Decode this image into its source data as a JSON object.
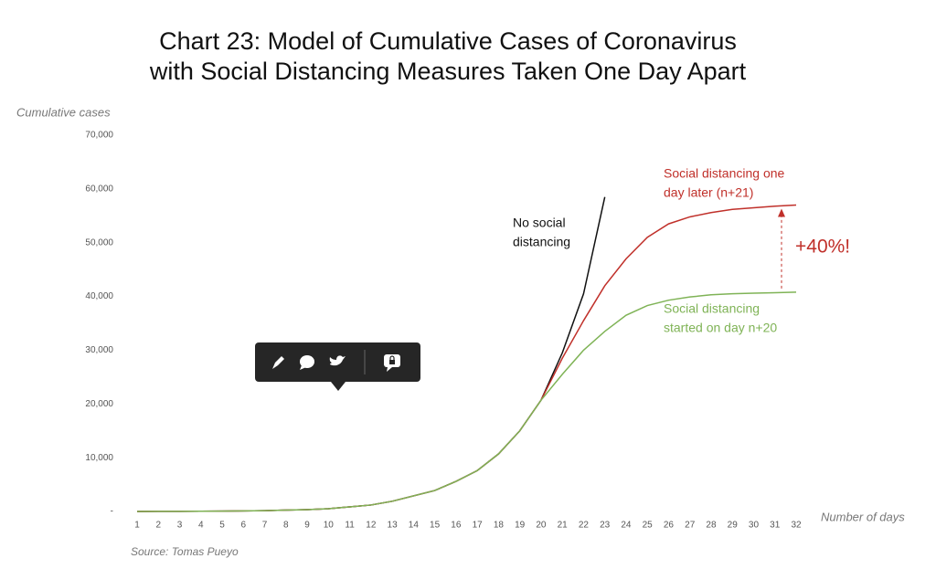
{
  "chart_data": {
    "type": "line",
    "title_lines": [
      "Chart 23: Model of Cumulative Cases of Coronavirus",
      "with Social Distancing Measures Taken One Day Apart"
    ],
    "y_label": "Cumulative cases",
    "x_label": "Number of days",
    "source": "Source: Tomas Pueyo",
    "categories": [
      "1",
      "2",
      "3",
      "4",
      "5",
      "6",
      "7",
      "8",
      "9",
      "10",
      "11",
      "12",
      "13",
      "14",
      "15",
      "16",
      "17",
      "18",
      "19",
      "20",
      "21",
      "22",
      "23",
      "24",
      "25",
      "26",
      "27",
      "28",
      "29",
      "30",
      "31",
      "32"
    ],
    "ylim": [
      0,
      70000
    ],
    "yticks": [
      {
        "value": 0,
        "label": "-"
      },
      {
        "value": 10000,
        "label": "10,000"
      },
      {
        "value": 20000,
        "label": "20,000"
      },
      {
        "value": 30000,
        "label": "30,000"
      },
      {
        "value": 40000,
        "label": "40,000"
      },
      {
        "value": 50000,
        "label": "50,000"
      },
      {
        "value": 60000,
        "label": "60,000"
      },
      {
        "value": 70000,
        "label": "70,000"
      }
    ],
    "series": [
      {
        "label_lines": [
          "No social",
          "distancing"
        ],
        "color": "#111111",
        "values": [
          0,
          20,
          30,
          50,
          70,
          100,
          150,
          250,
          350,
          500,
          850,
          1200,
          1900,
          2900,
          3900,
          5600,
          7600,
          10700,
          15000,
          20700,
          29500,
          40500,
          58500,
          null,
          null,
          null,
          null,
          null,
          null,
          null,
          null,
          null
        ]
      },
      {
        "label_lines": [
          "Social distancing one",
          "day later (n+21)"
        ],
        "color": "#c0302a",
        "values": [
          0,
          20,
          30,
          50,
          70,
          100,
          150,
          250,
          350,
          500,
          850,
          1200,
          1900,
          2900,
          3900,
          5600,
          7600,
          10700,
          15000,
          20700,
          28500,
          35500,
          42000,
          47000,
          51000,
          53500,
          54800,
          55600,
          56200,
          56500,
          56800,
          57000
        ]
      },
      {
        "label_lines": [
          "Social distancing",
          "started on day n+20"
        ],
        "color": "#7fb356",
        "values": [
          0,
          20,
          30,
          50,
          70,
          100,
          150,
          250,
          350,
          500,
          850,
          1200,
          1900,
          2900,
          3900,
          5600,
          7600,
          10700,
          15000,
          20700,
          25500,
          30000,
          33500,
          36500,
          38300,
          39300,
          39900,
          40300,
          40500,
          40600,
          40700,
          40800
        ]
      }
    ],
    "callout": "+40%!"
  }
}
